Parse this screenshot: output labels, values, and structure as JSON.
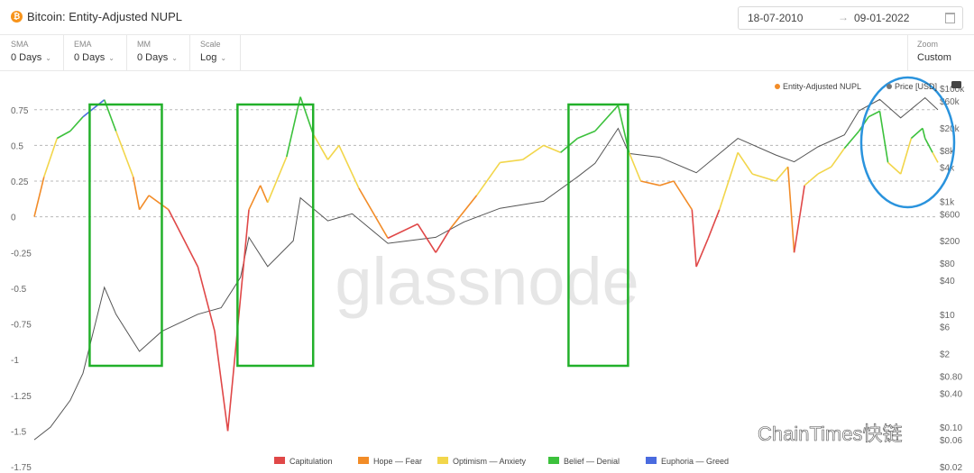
{
  "header": {
    "logo_glyph": "₿",
    "title": "Bitcoin: Entity-Adjusted NUPL",
    "date_from": "18-07-2010",
    "date_arrow": "→",
    "date_to": "09-01-2022"
  },
  "controls": [
    {
      "label": "SMA",
      "value": "0 Days"
    },
    {
      "label": "EMA",
      "value": "0 Days"
    },
    {
      "label": "MM",
      "value": "0 Days"
    },
    {
      "label": "Scale",
      "value": "Log"
    }
  ],
  "zoom": {
    "label": "Zoom",
    "value": "Custom"
  },
  "watermark": "glassnode",
  "watermark_corner": "ChainTimes快链",
  "chart_data": {
    "type": "line",
    "x_range": [
      "2010-07-18",
      "2022-01-09"
    ],
    "left_axis": {
      "ticks": [
        "0.75",
        "0.5",
        "0.25",
        "0",
        "-0.25",
        "-0.5",
        "-0.75",
        "-1",
        "-1.25",
        "-1.5",
        "-1.75"
      ],
      "ylim": [
        -1.75,
        0.9
      ]
    },
    "right_axis": {
      "scale": "log",
      "ticks": [
        "$100k",
        "$60k",
        "$20k",
        "$8k",
        "$4k",
        "$1k",
        "$600",
        "$200",
        "$80",
        "$40",
        "$10",
        "$6",
        "$2",
        "$0.80",
        "$0.40",
        "$0.10",
        "$0.06",
        "$0.02"
      ],
      "ylim": [
        0.02,
        100000
      ]
    },
    "top_legend": [
      {
        "name": "Entity-Adjusted NUPL",
        "color": "#f28c28"
      },
      {
        "name": "Price [USD]",
        "color": "#777777"
      }
    ],
    "bottom_legend": [
      {
        "name": "Capitulation",
        "color": "#e04848"
      },
      {
        "name": "Hope — Fear",
        "color": "#f28c28"
      },
      {
        "name": "Optimism — Anxiety",
        "color": "#f2d64b"
      },
      {
        "name": "Belief — Denial",
        "color": "#3cc13c"
      },
      {
        "name": "Euphoria — Greed",
        "color": "#4a6bdf"
      }
    ],
    "series": [
      {
        "name": "Entity-Adjusted NUPL",
        "dates": [
          "2010-07-18",
          "2010-09-01",
          "2010-11-01",
          "2011-01-01",
          "2011-03-01",
          "2011-06-08",
          "2011-08-01",
          "2011-10-20",
          "2011-11-18",
          "2012-01-01",
          "2012-04-01",
          "2012-08-15",
          "2012-11-01",
          "2013-01-01",
          "2013-04-09",
          "2013-06-01",
          "2013-07-05",
          "2013-10-01",
          "2013-12-04",
          "2014-02-01",
          "2014-04-10",
          "2014-06-01",
          "2014-09-01",
          "2015-01-14",
          "2015-06-01",
          "2015-08-24",
          "2015-11-01",
          "2016-03-01",
          "2016-06-17",
          "2016-10-01",
          "2017-01-05",
          "2017-03-25",
          "2017-06-12",
          "2017-09-01",
          "2017-12-17",
          "2018-02-06",
          "2018-04-01",
          "2018-06-29",
          "2018-09-01",
          "2018-11-25",
          "2018-12-15",
          "2019-02-08",
          "2019-04-01",
          "2019-06-26",
          "2019-09-01",
          "2019-12-18",
          "2020-02-13",
          "2020-03-13",
          "2020-04-30",
          "2020-07-01",
          "2020-09-01",
          "2020-11-01",
          "2021-01-08",
          "2021-02-21",
          "2021-04-14",
          "2021-05-22",
          "2021-07-20",
          "2021-09-07",
          "2021-10-30",
          "2021-11-10",
          "2021-12-15",
          "2022-01-09"
        ],
        "values": [
          0.0,
          0.28,
          0.55,
          0.6,
          0.7,
          0.82,
          0.6,
          0.28,
          0.05,
          0.15,
          0.05,
          -0.35,
          -0.8,
          -1.5,
          0.05,
          0.22,
          0.1,
          0.42,
          0.84,
          0.58,
          0.4,
          0.5,
          0.2,
          -0.15,
          -0.05,
          -0.25,
          -0.08,
          0.15,
          0.38,
          0.4,
          0.5,
          0.45,
          0.55,
          0.6,
          0.78,
          0.45,
          0.25,
          0.22,
          0.25,
          0.05,
          -0.35,
          -0.15,
          0.05,
          0.45,
          0.3,
          0.25,
          0.35,
          -0.25,
          0.22,
          0.3,
          0.35,
          0.48,
          0.6,
          0.7,
          0.74,
          0.38,
          0.3,
          0.55,
          0.62,
          0.55,
          0.45,
          0.38
        ]
      },
      {
        "name": "Price [USD]",
        "dates": [
          "2010-07-18",
          "2010-10-01",
          "2011-01-01",
          "2011-03-01",
          "2011-06-08",
          "2011-08-01",
          "2011-11-18",
          "2012-03-01",
          "2012-08-15",
          "2012-12-01",
          "2013-03-01",
          "2013-04-09",
          "2013-07-05",
          "2013-11-01",
          "2013-12-04",
          "2014-04-10",
          "2014-08-01",
          "2015-01-14",
          "2015-08-24",
          "2016-01-01",
          "2016-06-17",
          "2017-01-05",
          "2017-06-12",
          "2017-09-01",
          "2017-12-17",
          "2018-02-06",
          "2018-06-29",
          "2018-12-15",
          "2019-06-26",
          "2019-12-18",
          "2020-03-13",
          "2020-07-01",
          "2020-11-01",
          "2021-01-08",
          "2021-04-14",
          "2021-07-20",
          "2021-11-10",
          "2022-01-09"
        ],
        "values": [
          0.06,
          0.1,
          0.3,
          0.9,
          30,
          10,
          2.2,
          5,
          10,
          13,
          45,
          230,
          70,
          200,
          1150,
          450,
          600,
          180,
          230,
          430,
          750,
          1000,
          2700,
          4700,
          19500,
          7000,
          6000,
          3200,
          13000,
          6600,
          5000,
          9200,
          15000,
          40000,
          63500,
          30000,
          68000,
          41500
        ]
      }
    ],
    "annotations": [
      {
        "type": "green-box",
        "from": "2011-04-01",
        "to": "2012-03-01"
      },
      {
        "type": "green-box",
        "from": "2013-02-15",
        "to": "2014-02-01"
      },
      {
        "type": "green-box",
        "from": "2017-05-01",
        "to": "2018-02-01"
      },
      {
        "type": "blue-ellipse",
        "from": "2021-03-01",
        "to": "2022-01-09"
      }
    ]
  }
}
